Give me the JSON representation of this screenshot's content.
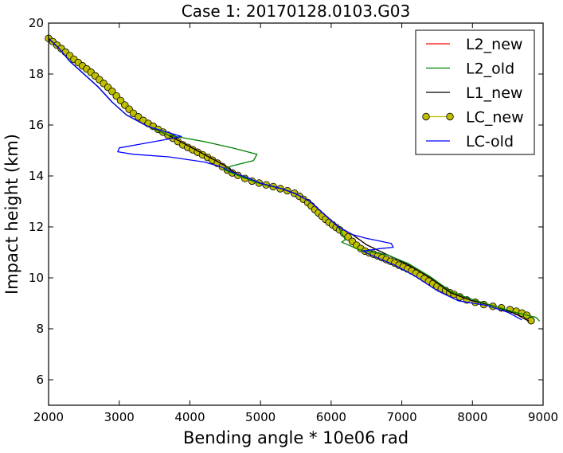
{
  "chart_data": {
    "type": "line",
    "title": "Case 1: 20170128.0103.G03",
    "xlabel": "Bending angle * 10e06 rad",
    "ylabel": "Impact height (km)",
    "xlim": [
      2000,
      9000
    ],
    "ylim": [
      5,
      20
    ],
    "xticks": [
      2000,
      3000,
      4000,
      5000,
      6000,
      7000,
      8000,
      9000
    ],
    "yticks": [
      6,
      8,
      10,
      12,
      14,
      16,
      18,
      20
    ],
    "grid": false,
    "legend_position": "top-right",
    "series": [
      {
        "name": "L2_new",
        "style": "line",
        "color": "#ff0000",
        "x": [
          2000,
          2150,
          2300,
          2500,
          2700,
          2900,
          3100,
          3400,
          3700,
          3900,
          4100,
          4300,
          4500,
          4700,
          5000,
          5300,
          5500,
          5700,
          5900,
          6100,
          6300,
          6500,
          6800,
          7100,
          7400,
          7700,
          8000,
          8300,
          8600,
          8800
        ],
        "y": [
          19.4,
          19.0,
          18.5,
          18.0,
          17.5,
          16.9,
          16.4,
          15.95,
          15.6,
          15.3,
          15.0,
          14.7,
          14.4,
          14.0,
          13.7,
          13.5,
          13.3,
          13.0,
          12.5,
          12.0,
          11.7,
          11.3,
          10.9,
          10.5,
          10.0,
          9.4,
          9.1,
          8.9,
          8.6,
          8.3
        ]
      },
      {
        "name": "L2_old",
        "style": "line",
        "color": "#008000",
        "x": [
          2000,
          2150,
          2300,
          2500,
          2700,
          2900,
          3100,
          3400,
          3700,
          3900,
          4200,
          4600,
          4950,
          4900,
          4600,
          4480,
          4700,
          5000,
          5300,
          5500,
          5700,
          5900,
          6100,
          6200,
          6150,
          6400,
          6800,
          7100,
          7400,
          7700,
          8000,
          8300,
          8600,
          8900,
          8950
        ],
        "y": [
          19.4,
          19.0,
          18.5,
          18.0,
          17.5,
          16.9,
          16.4,
          15.95,
          15.6,
          15.5,
          15.35,
          15.1,
          14.85,
          14.6,
          14.4,
          14.25,
          14.0,
          13.7,
          13.5,
          13.3,
          13.0,
          12.5,
          12.0,
          11.5,
          11.4,
          11.1,
          10.9,
          10.55,
          10.05,
          9.45,
          9.15,
          8.9,
          8.65,
          8.45,
          8.3
        ]
      },
      {
        "name": "L1_new",
        "style": "line",
        "color": "#000000",
        "x": [
          2000,
          2150,
          2300,
          2500,
          2700,
          2900,
          3100,
          3400,
          3700,
          3900,
          4100,
          4300,
          4500,
          4700,
          5000,
          5300,
          5500,
          5700,
          5900,
          6100,
          6300,
          6500,
          6800,
          7100,
          7400,
          7700,
          8000,
          8300,
          8600,
          8800
        ],
        "y": [
          19.4,
          19.0,
          18.5,
          18.0,
          17.5,
          16.9,
          16.4,
          15.95,
          15.6,
          15.3,
          15.0,
          14.7,
          14.4,
          14.0,
          13.7,
          13.5,
          13.3,
          13.0,
          12.5,
          12.0,
          11.7,
          11.3,
          10.9,
          10.5,
          10.0,
          9.4,
          9.1,
          8.9,
          8.6,
          8.3
        ]
      },
      {
        "name": "LC_new",
        "style": "markers",
        "color": "#bfbf00",
        "x": [
          2000,
          2060,
          2120,
          2180,
          2240,
          2300,
          2360,
          2420,
          2480,
          2540,
          2600,
          2660,
          2720,
          2780,
          2840,
          2900,
          2960,
          3020,
          3080,
          3140,
          3200,
          3270,
          3340,
          3410,
          3480,
          3550,
          3620,
          3690,
          3760,
          3830,
          3900,
          3970,
          4040,
          4110,
          4180,
          4250,
          4320,
          4390,
          4460,
          4530,
          4600,
          4680,
          4780,
          4880,
          4980,
          5080,
          5180,
          5280,
          5380,
          5480,
          5550,
          5610,
          5670,
          5720,
          5770,
          5820,
          5870,
          5920,
          5970,
          6020,
          6070,
          6120,
          6180,
          6240,
          6300,
          6360,
          6420,
          6480,
          6540,
          6600,
          6660,
          6720,
          6780,
          6840,
          6900,
          6960,
          7020,
          7080,
          7140,
          7200,
          7260,
          7320,
          7380,
          7440,
          7500,
          7560,
          7620,
          7680,
          7740,
          7820,
          7920,
          8040,
          8160,
          8290,
          8410,
          8530,
          8620,
          8700,
          8770,
          8830
        ],
        "y": [
          19.4,
          19.27,
          19.13,
          19.0,
          18.86,
          18.72,
          18.58,
          18.45,
          18.32,
          18.2,
          18.07,
          17.93,
          17.78,
          17.63,
          17.48,
          17.32,
          17.14,
          16.96,
          16.78,
          16.62,
          16.46,
          16.32,
          16.18,
          16.06,
          15.95,
          15.83,
          15.72,
          15.6,
          15.48,
          15.35,
          15.22,
          15.12,
          15.03,
          14.93,
          14.83,
          14.73,
          14.62,
          14.5,
          14.37,
          14.23,
          14.12,
          14.02,
          13.9,
          13.8,
          13.72,
          13.65,
          13.58,
          13.5,
          13.42,
          13.32,
          13.2,
          13.08,
          12.95,
          12.82,
          12.68,
          12.55,
          12.42,
          12.3,
          12.18,
          12.08,
          11.98,
          11.88,
          11.75,
          11.6,
          11.43,
          11.28,
          11.15,
          11.05,
          10.98,
          10.93,
          10.86,
          10.79,
          10.72,
          10.65,
          10.58,
          10.5,
          10.43,
          10.35,
          10.27,
          10.18,
          10.08,
          9.97,
          9.87,
          9.77,
          9.67,
          9.58,
          9.5,
          9.42,
          9.35,
          9.25,
          9.13,
          9.04,
          8.95,
          8.88,
          8.82,
          8.75,
          8.69,
          8.62,
          8.53,
          8.32
        ]
      },
      {
        "name": "LC-old",
        "style": "line",
        "color": "#0000ff",
        "x": [
          2000,
          2150,
          2300,
          2500,
          2700,
          2900,
          3100,
          3400,
          3700,
          3880,
          3700,
          3300,
          3000,
          2980,
          3200,
          3700,
          4200,
          4450,
          4600,
          4800,
          5000,
          5300,
          5500,
          5700,
          5900,
          6100,
          6300,
          6500,
          6850,
          6880,
          6700,
          6450,
          6600,
          6900,
          7200,
          7500,
          7800,
          8200,
          8500,
          8700
        ],
        "y": [
          19.4,
          19.0,
          18.5,
          18.0,
          17.5,
          16.9,
          16.4,
          15.95,
          15.7,
          15.55,
          15.45,
          15.25,
          15.1,
          14.95,
          14.85,
          14.75,
          14.55,
          14.35,
          14.15,
          13.95,
          13.72,
          13.5,
          13.3,
          13.0,
          12.5,
          12.0,
          11.7,
          11.55,
          11.35,
          11.2,
          11.15,
          11.05,
          10.85,
          10.5,
          10.05,
          9.5,
          9.1,
          8.92,
          8.65,
          8.35
        ]
      }
    ]
  }
}
